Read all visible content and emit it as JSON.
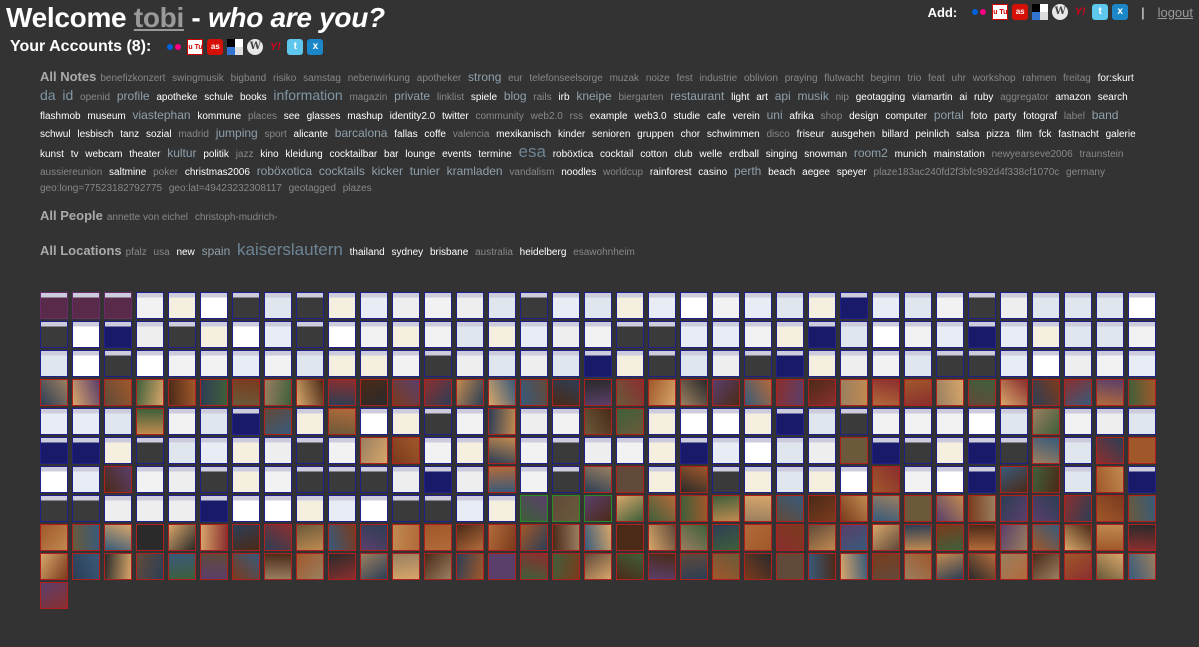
{
  "header": {
    "welcome_prefix": "Welcome",
    "username": "tobi",
    "dash": "-",
    "question": "who are you?",
    "accounts_label": "Your Accounts (8):",
    "add_label": "Add:",
    "separator": "|",
    "logout_label": "logout"
  },
  "account_icons": [
    "flickr-icon",
    "youtube-icon",
    "lastfm-icon",
    "delicious-icon",
    "wordpress-icon",
    "yahoo-icon",
    "twitter-icon",
    "xing-icon"
  ],
  "add_icons": [
    "flickr-icon",
    "youtube-icon",
    "lastfm-icon",
    "delicious-icon",
    "wordpress-icon",
    "yahoo-icon",
    "twitter-icon",
    "xing-icon"
  ],
  "icon_text": {
    "youtube": "You\nTube",
    "lastfm": "as",
    "wordpress": "W",
    "yahoo": "Y!",
    "twitter": "t",
    "xing": "x"
  },
  "notes": {
    "heading": "All Notes",
    "tags": [
      [
        "benefizkonzert",
        "g"
      ],
      [
        "swingmusik",
        "g"
      ],
      [
        "bigband",
        "g"
      ],
      [
        "risiko",
        "g"
      ],
      [
        "samstag",
        "g"
      ],
      [
        "nebenwirkung",
        "g"
      ],
      [
        "apotheker",
        "g"
      ],
      [
        "strong",
        "m"
      ],
      [
        "eur",
        "g"
      ],
      [
        "telefonseelsorge",
        "g"
      ],
      [
        "muzak",
        "g"
      ],
      [
        "noize",
        "g"
      ],
      [
        "fest",
        "g"
      ],
      [
        "industrie",
        "g"
      ],
      [
        "oblivion",
        "g"
      ],
      [
        "praying",
        "g"
      ],
      [
        "flutwacht",
        "g"
      ],
      [
        "beginn",
        "g"
      ],
      [
        "trio",
        "g"
      ],
      [
        "feat",
        "g"
      ],
      [
        "uhr",
        "g"
      ],
      [
        "workshop",
        "g"
      ],
      [
        "rahmen",
        "g"
      ],
      [
        "freitag",
        "g"
      ],
      [
        "for:skurt",
        "w"
      ],
      [
        "da",
        "l"
      ],
      [
        "id",
        "l"
      ],
      [
        "openid",
        "g"
      ],
      [
        "profile",
        "m"
      ],
      [
        "apotheke",
        "w"
      ],
      [
        "schule",
        "w"
      ],
      [
        "books",
        "w"
      ],
      [
        "information",
        "l"
      ],
      [
        "magazin",
        "g"
      ],
      [
        "private",
        "m"
      ],
      [
        "linklist",
        "g"
      ],
      [
        "spiele",
        "w"
      ],
      [
        "blog",
        "m"
      ],
      [
        "rails",
        "g"
      ],
      [
        "irb",
        "w"
      ],
      [
        "kneipe",
        "m"
      ],
      [
        "biergarten",
        "g"
      ],
      [
        "restaurant",
        "m"
      ],
      [
        "light",
        "w"
      ],
      [
        "art",
        "w"
      ],
      [
        "api",
        "m"
      ],
      [
        "musik",
        "m"
      ],
      [
        "nip",
        "g"
      ],
      [
        "geotagging",
        "w"
      ],
      [
        "viamartin",
        "w"
      ],
      [
        "ai",
        "w"
      ],
      [
        "ruby",
        "w"
      ],
      [
        "aggregator",
        "g"
      ],
      [
        "amazon",
        "w"
      ],
      [
        "search",
        "w"
      ],
      [
        "flashmob",
        "w"
      ],
      [
        "museum",
        "w"
      ],
      [
        "viastephan",
        "m"
      ],
      [
        "kommune",
        "w"
      ],
      [
        "places",
        "g"
      ],
      [
        "see",
        "w"
      ],
      [
        "glasses",
        "w"
      ],
      [
        "mashup",
        "w"
      ],
      [
        "identity2.0",
        "w"
      ],
      [
        "twitter",
        "w"
      ],
      [
        "community",
        "g"
      ],
      [
        "web2.0",
        "g"
      ],
      [
        "rss",
        "g"
      ],
      [
        "example",
        "w"
      ],
      [
        "web3.0",
        "w"
      ],
      [
        "studie",
        "w"
      ],
      [
        "cafe",
        "w"
      ],
      [
        "verein",
        "w"
      ],
      [
        "uni",
        "m"
      ],
      [
        "afrika",
        "w"
      ],
      [
        "shop",
        "g"
      ],
      [
        "design",
        "w"
      ],
      [
        "computer",
        "w"
      ],
      [
        "portal",
        "m"
      ],
      [
        "foto",
        "w"
      ],
      [
        "party",
        "w"
      ],
      [
        "fotograf",
        "w"
      ],
      [
        "label",
        "g"
      ],
      [
        "band",
        "m"
      ],
      [
        "schwul",
        "w"
      ],
      [
        "lesbisch",
        "w"
      ],
      [
        "tanz",
        "w"
      ],
      [
        "sozial",
        "w"
      ],
      [
        "madrid",
        "g"
      ],
      [
        "jumping",
        "m"
      ],
      [
        "sport",
        "g"
      ],
      [
        "alicante",
        "w"
      ],
      [
        "barcalona",
        "m"
      ],
      [
        "fallas",
        "w"
      ],
      [
        "coffe",
        "w"
      ],
      [
        "valencia",
        "g"
      ],
      [
        "mexikanisch",
        "w"
      ],
      [
        "kinder",
        "w"
      ],
      [
        "senioren",
        "w"
      ],
      [
        "gruppen",
        "w"
      ],
      [
        "chor",
        "w"
      ],
      [
        "schwimmen",
        "w"
      ],
      [
        "disco",
        "g"
      ],
      [
        "friseur",
        "w"
      ],
      [
        "ausgehen",
        "w"
      ],
      [
        "billard",
        "w"
      ],
      [
        "peinlich",
        "w"
      ],
      [
        "salsa",
        "w"
      ],
      [
        "pizza",
        "w"
      ],
      [
        "film",
        "w"
      ],
      [
        "fck",
        "w"
      ],
      [
        "fastnacht",
        "w"
      ],
      [
        "galerie",
        "w"
      ],
      [
        "kunst",
        "w"
      ],
      [
        "tv",
        "w"
      ],
      [
        "webcam",
        "w"
      ],
      [
        "theater",
        "w"
      ],
      [
        "kultur",
        "m"
      ],
      [
        "politik",
        "w"
      ],
      [
        "jazz",
        "g"
      ],
      [
        "kino",
        "w"
      ],
      [
        "kleidung",
        "w"
      ],
      [
        "cocktailbar",
        "w"
      ],
      [
        "bar",
        "w"
      ],
      [
        "lounge",
        "w"
      ],
      [
        "events",
        "w"
      ],
      [
        "termine",
        "w"
      ],
      [
        "esa",
        "xl"
      ],
      [
        "roböxtica",
        "w"
      ],
      [
        "cocktail",
        "w"
      ],
      [
        "cotton",
        "w"
      ],
      [
        "club",
        "w"
      ],
      [
        "welle",
        "w"
      ],
      [
        "erdball",
        "w"
      ],
      [
        "singing",
        "w"
      ],
      [
        "snowman",
        "w"
      ],
      [
        "room2",
        "m"
      ],
      [
        "munich",
        "w"
      ],
      [
        "mainstation",
        "w"
      ],
      [
        "newyearseve2006",
        "g"
      ],
      [
        "traunstein",
        "g"
      ],
      [
        "aussiereunion",
        "g"
      ],
      [
        "saltmine",
        "w"
      ],
      [
        "poker",
        "g"
      ],
      [
        "christmas2006",
        "w"
      ],
      [
        "roböxotica",
        "m"
      ],
      [
        "cocktails",
        "m"
      ],
      [
        "kicker",
        "m"
      ],
      [
        "tunier",
        "m"
      ],
      [
        "kramladen",
        "m"
      ],
      [
        "vandalism",
        "g"
      ],
      [
        "noodles",
        "w"
      ],
      [
        "worldcup",
        "g"
      ],
      [
        "rainforest",
        "w"
      ],
      [
        "casino",
        "w"
      ],
      [
        "perth",
        "m"
      ],
      [
        "beach",
        "w"
      ],
      [
        "aegee",
        "w"
      ],
      [
        "speyer",
        "w"
      ],
      [
        "plaze183ac240fd2f3bfc992d4f338cf1070c",
        "g"
      ],
      [
        "germany",
        "g"
      ],
      [
        "geo:long=77523182792775",
        "g"
      ],
      [
        "geo:lat=49423232308117",
        "g"
      ],
      [
        "geotagged",
        "g"
      ],
      [
        "plazes",
        "g"
      ]
    ]
  },
  "people": {
    "heading": "All People",
    "tags": [
      [
        "annette von eichel",
        "g"
      ],
      [
        "christoph-mudrich-",
        "g"
      ]
    ]
  },
  "locations": {
    "heading": "All Locations",
    "tags": [
      [
        "pfalz",
        "g"
      ],
      [
        "usa",
        "g"
      ],
      [
        "new",
        "w"
      ],
      [
        "spain",
        "m"
      ],
      [
        "kaiserslautern",
        "xl"
      ],
      [
        "thailand",
        "w"
      ],
      [
        "sydney",
        "w"
      ],
      [
        "brisbane",
        "w"
      ],
      [
        "australia",
        "g"
      ],
      [
        "heidelberg",
        "w"
      ],
      [
        "esawohnheim",
        "g"
      ]
    ]
  },
  "thumbnails": {
    "count": 351,
    "colors": {
      "flickr_border": "#b01e1e",
      "site_border": "#20208c",
      "del_border": "#6b2a6b",
      "green_border": "#2a8a2a"
    }
  }
}
